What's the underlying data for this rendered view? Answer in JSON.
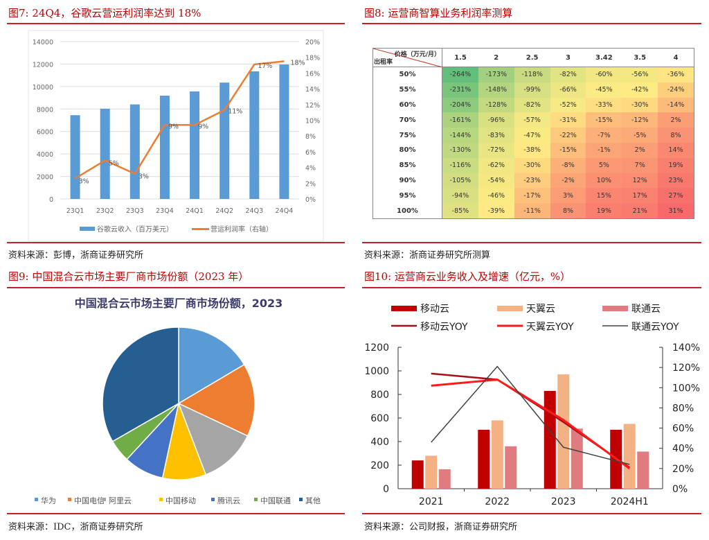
{
  "fig7": {
    "title": "图7:   24Q4，谷歌云营运利润率达到 18%",
    "source": "资料来源：彭博，浙商证券研究所",
    "chart_data": {
      "type": "bar+line",
      "categories": [
        "23Q1",
        "23Q2",
        "23Q3",
        "23Q4",
        "24Q1",
        "24Q2",
        "24Q3",
        "24Q4"
      ],
      "series": [
        {
          "name": "谷歌云收入（百万美元）",
          "type": "bar",
          "axis": "left",
          "color": "#5b9bd5",
          "values": [
            7450,
            8030,
            8410,
            9190,
            9570,
            10350,
            11350,
            11960
          ]
        },
        {
          "name": "营运利润率（右轴）",
          "type": "line",
          "axis": "right",
          "color": "#ed7d31",
          "values": [
            2.6,
            4.9,
            3.2,
            9.4,
            9.4,
            11.3,
            17.1,
            17.5
          ],
          "labels": [
            "3%",
            "5%",
            "3%",
            "9%",
            "9%",
            "11%",
            "17%",
            "18%"
          ]
        }
      ],
      "ylim_left": [
        0,
        14000
      ],
      "yticks_left": [
        "0",
        "2000",
        "4000",
        "6000",
        "8000",
        "10000",
        "12000",
        "14000"
      ],
      "ylim_right": [
        0,
        20
      ],
      "yticks_right": [
        "0%",
        "2%",
        "4%",
        "6%",
        "8%",
        "10%",
        "12%",
        "14%",
        "16%",
        "18%",
        "20%"
      ],
      "grid": true,
      "legend": "bottom"
    }
  },
  "fig8": {
    "title": "图8:   运营商智算业务利润率测算",
    "source": "资料来源：浙商证券研究所测算",
    "chart_data": {
      "type": "heatmap",
      "corner_top": "价格（万元/月）",
      "corner_bottom": "出租率",
      "columns": [
        "1.5",
        "2",
        "2.5",
        "3",
        "3.42",
        "3.5",
        "4"
      ],
      "rows": [
        "50%",
        "55%",
        "60%",
        "70%",
        "75%",
        "80%",
        "85%",
        "90%",
        "95%",
        "100%"
      ],
      "values": [
        [
          -264,
          -173,
          -118,
          -82,
          -60,
          -56,
          -36
        ],
        [
          -231,
          -148,
          -99,
          -66,
          -45,
          -42,
          -24
        ],
        [
          -204,
          -128,
          -82,
          -52,
          -33,
          -30,
          -14
        ],
        [
          -161,
          -96,
          -57,
          -31,
          -15,
          -12,
          2
        ],
        [
          -144,
          -83,
          -47,
          -22,
          -7,
          -5,
          8
        ],
        [
          -130,
          -72,
          -38,
          -15,
          -1,
          2,
          14
        ],
        [
          -116,
          -62,
          -30,
          -8,
          5,
          7,
          19
        ],
        [
          -105,
          -54,
          -23,
          -2,
          10,
          12,
          23
        ],
        [
          -94,
          -46,
          -17,
          3,
          15,
          17,
          27
        ],
        [
          -85,
          -39,
          -11,
          8,
          19,
          21,
          31
        ]
      ],
      "colors": {
        "low": "#63be7b",
        "mid": "#ffeb84",
        "high": "#f8696b"
      }
    }
  },
  "fig9": {
    "title": "图9:   中国混合云市场主要厂商市场份额（2023 年）",
    "source": "资料来源：IDC，浙商证券研究所",
    "chart_data": {
      "type": "pie",
      "title": "中国混合云市场主要厂商市场份额，2023",
      "legend": "bottom",
      "labels": [
        "华为",
        "中国电信",
        "阿里云",
        "中国移动",
        "腾讯云",
        "中国联通",
        "其他"
      ],
      "values": [
        16.5,
        15.5,
        12.2,
        9.2,
        8.5,
        4.8,
        33.3
      ],
      "colors": [
        "#5b9bd5",
        "#ed7d31",
        "#a5a5a5",
        "#ffc000",
        "#4472c4",
        "#70ad47",
        "#255e91"
      ]
    }
  },
  "fig10": {
    "title": "图10:   运营商云业务收入及增速（亿元，%）",
    "source": "资料来源：公司财报，浙商证券研究所",
    "chart_data": {
      "type": "bar+line",
      "categories": [
        "2021",
        "2022",
        "2023",
        "2024H1"
      ],
      "series": [
        {
          "name": "移动云",
          "type": "bar",
          "axis": "left",
          "color": "#c00000",
          "values": [
            240,
            500,
            830,
            500
          ]
        },
        {
          "name": "天翼云",
          "type": "bar",
          "axis": "left",
          "color": "#f4b183",
          "values": [
            280,
            580,
            970,
            550
          ]
        },
        {
          "name": "联通云",
          "type": "bar",
          "axis": "left",
          "color": "#e07b80",
          "values": [
            165,
            360,
            510,
            315
          ]
        },
        {
          "name": "移动云YOY",
          "type": "line",
          "axis": "right",
          "color": "#a50f15",
          "values": [
            114,
            108,
            66,
            21
          ]
        },
        {
          "name": "天翼云YOY",
          "type": "line",
          "axis": "right",
          "color": "#ff1a1a",
          "values": [
            102,
            108,
            68,
            20
          ]
        },
        {
          "name": "联通云YOY",
          "type": "line",
          "axis": "right",
          "color": "#404040",
          "values": [
            46,
            121,
            41,
            24
          ]
        }
      ],
      "ylim_left": [
        0,
        1200
      ],
      "yticks_left": [
        "0",
        "200",
        "400",
        "600",
        "800",
        "1000",
        "1200"
      ],
      "ylim_right": [
        0,
        140
      ],
      "yticks_right": [
        "0%",
        "20%",
        "40%",
        "60%",
        "80%",
        "100%",
        "120%",
        "140%"
      ],
      "grid": false,
      "legend": "top"
    }
  }
}
